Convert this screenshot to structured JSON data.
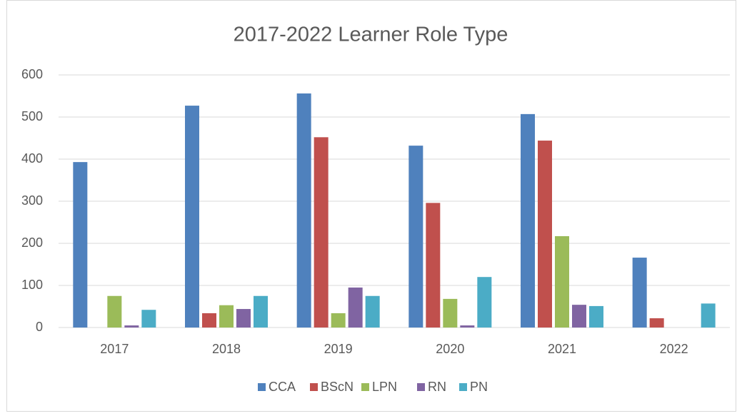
{
  "chart_data": {
    "type": "bar",
    "title": "2017-2022 Learner Role Type",
    "categories": [
      "2017",
      "2018",
      "2019",
      "2020",
      "2021",
      "2022"
    ],
    "series": [
      {
        "name": "CCA",
        "color": "#4f81bd",
        "values": [
          393,
          527,
          556,
          432,
          507,
          166
        ]
      },
      {
        "name": "BScN",
        "color": "#c0504d",
        "values": [
          0,
          34,
          452,
          296,
          444,
          22
        ]
      },
      {
        "name": "LPN",
        "color": "#9bbb59",
        "values": [
          75,
          53,
          34,
          68,
          217,
          0
        ]
      },
      {
        "name": "RN",
        "color": "#8064a2",
        "values": [
          5,
          44,
          95,
          5,
          54,
          0
        ]
      },
      {
        "name": "PN",
        "color": "#4bacc6",
        "values": [
          42,
          75,
          75,
          120,
          51,
          57
        ]
      }
    ],
    "ylim": [
      0,
      600
    ],
    "yticks": [
      0,
      100,
      200,
      300,
      400,
      500,
      600
    ],
    "grid": true,
    "legend": "bottom"
  }
}
